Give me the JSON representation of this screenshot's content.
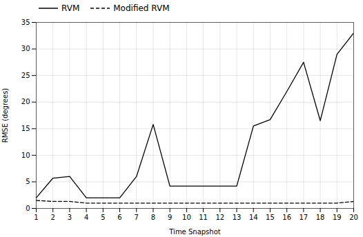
{
  "chart_data": {
    "type": "line",
    "x": [
      1,
      2,
      3,
      4,
      5,
      6,
      7,
      8,
      9,
      10,
      11,
      12,
      13,
      14,
      15,
      16,
      17,
      18,
      19,
      20
    ],
    "series": [
      {
        "name": "RVM",
        "color": "#000000",
        "line_style": "solid",
        "values": [
          2.0,
          5.7,
          6.0,
          2.0,
          2.0,
          2.0,
          6.0,
          15.8,
          4.2,
          4.2,
          4.2,
          4.2,
          4.2,
          15.5,
          16.7,
          22.0,
          27.5,
          16.5,
          29.0,
          33.0
        ]
      },
      {
        "name": "Modified RVM",
        "color": "#000000",
        "line_style": "dashed",
        "values": [
          1.5,
          1.3,
          1.3,
          1.0,
          1.0,
          1.0,
          1.0,
          1.0,
          1.0,
          1.0,
          1.0,
          1.0,
          1.0,
          1.0,
          1.0,
          1.0,
          1.0,
          1.0,
          1.0,
          1.3
        ]
      }
    ],
    "xlabel": "Time Snapshot",
    "ylabel": "RMSE (degrees)",
    "xlim": [
      1,
      20
    ],
    "ylim": [
      0,
      35
    ],
    "xticks": [
      1,
      2,
      3,
      4,
      5,
      6,
      7,
      8,
      9,
      10,
      11,
      12,
      13,
      14,
      15,
      16,
      17,
      18,
      19,
      20
    ],
    "yticks": [
      0,
      5,
      10,
      15,
      20,
      25,
      30,
      35
    ],
    "grid": true,
    "legend": "upper left"
  }
}
